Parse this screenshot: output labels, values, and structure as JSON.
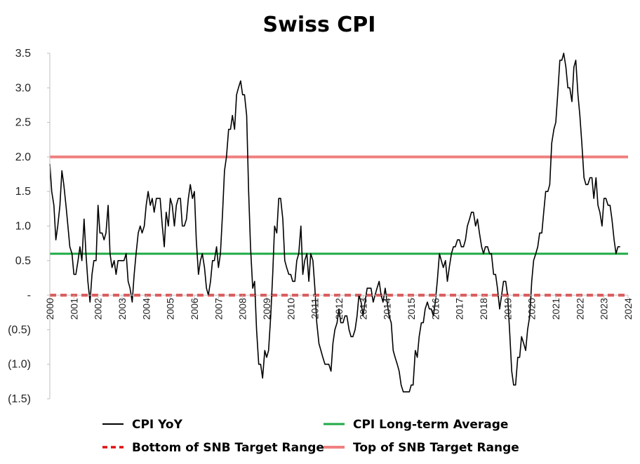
{
  "chart_data": {
    "type": "line",
    "title": "Swiss CPI",
    "xlabel": "",
    "ylabel": "",
    "ylim": [
      -1.5,
      3.5
    ],
    "xlim": [
      2000.0,
      2024.0
    ],
    "y_ticks": [
      {
        "value": 3.5,
        "label": "3.5"
      },
      {
        "value": 3.0,
        "label": "3.0"
      },
      {
        "value": 2.5,
        "label": "2.5"
      },
      {
        "value": 2.0,
        "label": "2.0"
      },
      {
        "value": 1.5,
        "label": "1.5"
      },
      {
        "value": 1.0,
        "label": "1.0"
      },
      {
        "value": 0.5,
        "label": "0.5"
      },
      {
        "value": 0.0,
        "label": "-"
      },
      {
        "value": -0.5,
        "label": "(0.5)"
      },
      {
        "value": -1.0,
        "label": "(1.0)"
      },
      {
        "value": -1.5,
        "label": "(1.5)"
      }
    ],
    "x_ticks": [
      "2000",
      "2001",
      "2002",
      "2003",
      "2004",
      "2005",
      "2006",
      "2007",
      "2008",
      "2009",
      "2010",
      "2011",
      "2012",
      "2013",
      "2014",
      "2015",
      "2016",
      "2017",
      "2018",
      "2019",
      "2020",
      "2021",
      "2022",
      "2023",
      "2024"
    ],
    "grid": false,
    "legend_position": "bottom",
    "series": [
      {
        "name": "CPI YoY",
        "color": "#000000",
        "style": "solid",
        "points": [
          [
            2000.0,
            1.9
          ],
          [
            2000.08,
            1.5
          ],
          [
            2000.17,
            1.3
          ],
          [
            2000.25,
            0.8
          ],
          [
            2000.33,
            1.0
          ],
          [
            2000.42,
            1.3
          ],
          [
            2000.5,
            1.8
          ],
          [
            2000.58,
            1.6
          ],
          [
            2000.67,
            1.3
          ],
          [
            2000.75,
            1.0
          ],
          [
            2000.83,
            0.7
          ],
          [
            2000.92,
            0.6
          ],
          [
            2001.0,
            0.3
          ],
          [
            2001.08,
            0.3
          ],
          [
            2001.17,
            0.5
          ],
          [
            2001.25,
            0.7
          ],
          [
            2001.33,
            0.5
          ],
          [
            2001.42,
            1.1
          ],
          [
            2001.5,
            0.6
          ],
          [
            2001.58,
            0.2
          ],
          [
            2001.67,
            -0.1
          ],
          [
            2001.75,
            0.3
          ],
          [
            2001.83,
            0.5
          ],
          [
            2001.92,
            0.5
          ],
          [
            2002.0,
            1.3
          ],
          [
            2002.08,
            0.9
          ],
          [
            2002.17,
            0.9
          ],
          [
            2002.25,
            0.8
          ],
          [
            2002.33,
            0.9
          ],
          [
            2002.42,
            1.3
          ],
          [
            2002.5,
            0.6
          ],
          [
            2002.58,
            0.4
          ],
          [
            2002.67,
            0.5
          ],
          [
            2002.75,
            0.3
          ],
          [
            2002.83,
            0.5
          ],
          [
            2002.92,
            0.5
          ],
          [
            2003.0,
            0.5
          ],
          [
            2003.08,
            0.5
          ],
          [
            2003.17,
            0.6
          ],
          [
            2003.25,
            0.2
          ],
          [
            2003.33,
            0.1
          ],
          [
            2003.42,
            -0.1
          ],
          [
            2003.5,
            0.3
          ],
          [
            2003.58,
            0.6
          ],
          [
            2003.67,
            0.9
          ],
          [
            2003.75,
            1.0
          ],
          [
            2003.83,
            0.9
          ],
          [
            2003.92,
            1.0
          ],
          [
            2004.0,
            1.3
          ],
          [
            2004.08,
            1.5
          ],
          [
            2004.17,
            1.3
          ],
          [
            2004.25,
            1.4
          ],
          [
            2004.33,
            1.2
          ],
          [
            2004.42,
            1.4
          ],
          [
            2004.5,
            1.4
          ],
          [
            2004.58,
            1.4
          ],
          [
            2004.67,
            1.0
          ],
          [
            2004.75,
            0.7
          ],
          [
            2004.83,
            1.2
          ],
          [
            2004.92,
            1.0
          ],
          [
            2005.0,
            1.4
          ],
          [
            2005.08,
            1.3
          ],
          [
            2005.17,
            1.0
          ],
          [
            2005.25,
            1.3
          ],
          [
            2005.33,
            1.4
          ],
          [
            2005.42,
            1.4
          ],
          [
            2005.5,
            1.0
          ],
          [
            2005.58,
            1.0
          ],
          [
            2005.67,
            1.1
          ],
          [
            2005.75,
            1.4
          ],
          [
            2005.83,
            1.6
          ],
          [
            2005.92,
            1.4
          ],
          [
            2006.0,
            1.5
          ],
          [
            2006.08,
            0.8
          ],
          [
            2006.17,
            0.3
          ],
          [
            2006.25,
            0.5
          ],
          [
            2006.33,
            0.6
          ],
          [
            2006.42,
            0.4
          ],
          [
            2006.5,
            0.1
          ],
          [
            2006.58,
            0.0
          ],
          [
            2006.67,
            0.2
          ],
          [
            2006.75,
            0.5
          ],
          [
            2006.83,
            0.5
          ],
          [
            2006.92,
            0.7
          ],
          [
            2007.0,
            0.4
          ],
          [
            2007.08,
            0.6
          ],
          [
            2007.17,
            1.2
          ],
          [
            2007.25,
            1.8
          ],
          [
            2007.33,
            2.0
          ],
          [
            2007.42,
            2.4
          ],
          [
            2007.5,
            2.4
          ],
          [
            2007.58,
            2.6
          ],
          [
            2007.67,
            2.4
          ],
          [
            2007.75,
            2.9
          ],
          [
            2007.83,
            3.0
          ],
          [
            2007.92,
            3.1
          ],
          [
            2008.0,
            2.9
          ],
          [
            2008.08,
            2.9
          ],
          [
            2008.17,
            2.6
          ],
          [
            2008.25,
            1.5
          ],
          [
            2008.33,
            0.7
          ],
          [
            2008.42,
            0.1
          ],
          [
            2008.5,
            0.2
          ],
          [
            2008.58,
            -0.5
          ],
          [
            2008.67,
            -1.0
          ],
          [
            2008.75,
            -1.0
          ],
          [
            2008.83,
            -1.2
          ],
          [
            2008.92,
            -0.8
          ],
          [
            2009.0,
            -0.9
          ],
          [
            2009.08,
            -0.8
          ],
          [
            2009.17,
            -0.3
          ],
          [
            2009.25,
            0.3
          ],
          [
            2009.33,
            1.0
          ],
          [
            2009.42,
            0.9
          ],
          [
            2009.5,
            1.4
          ],
          [
            2009.58,
            1.4
          ],
          [
            2009.67,
            1.1
          ],
          [
            2009.75,
            0.5
          ],
          [
            2009.83,
            0.4
          ],
          [
            2009.92,
            0.3
          ],
          [
            2010.0,
            0.3
          ],
          [
            2010.08,
            0.2
          ],
          [
            2010.17,
            0.2
          ],
          [
            2010.25,
            0.5
          ],
          [
            2010.33,
            0.6
          ],
          [
            2010.42,
            1.0
          ],
          [
            2010.5,
            0.3
          ],
          [
            2010.58,
            0.5
          ],
          [
            2010.67,
            0.6
          ],
          [
            2010.75,
            0.2
          ],
          [
            2010.83,
            0.6
          ],
          [
            2010.92,
            0.5
          ],
          [
            2011.0,
            0.1
          ],
          [
            2011.08,
            -0.4
          ],
          [
            2011.17,
            -0.7
          ],
          [
            2011.25,
            -0.8
          ],
          [
            2011.33,
            -0.9
          ],
          [
            2011.42,
            -1.0
          ],
          [
            2011.5,
            -1.0
          ],
          [
            2011.58,
            -1.0
          ],
          [
            2011.67,
            -1.1
          ],
          [
            2011.75,
            -0.7
          ],
          [
            2011.83,
            -0.5
          ],
          [
            2011.92,
            -0.4
          ],
          [
            2012.0,
            -0.2
          ],
          [
            2012.08,
            -0.4
          ],
          [
            2012.17,
            -0.4
          ],
          [
            2012.25,
            -0.3
          ],
          [
            2012.33,
            -0.3
          ],
          [
            2012.42,
            -0.5
          ],
          [
            2012.5,
            -0.6
          ],
          [
            2012.58,
            -0.6
          ],
          [
            2012.67,
            -0.5
          ],
          [
            2012.75,
            -0.3
          ],
          [
            2012.83,
            0.0
          ],
          [
            2012.92,
            -0.1
          ],
          [
            2013.0,
            -0.3
          ],
          [
            2013.08,
            -0.1
          ],
          [
            2013.17,
            0.1
          ],
          [
            2013.25,
            0.1
          ],
          [
            2013.33,
            0.1
          ],
          [
            2013.42,
            -0.1
          ],
          [
            2013.5,
            0.0
          ],
          [
            2013.58,
            0.1
          ],
          [
            2013.67,
            0.2
          ],
          [
            2013.75,
            0.0
          ],
          [
            2013.83,
            -0.1
          ],
          [
            2013.92,
            0.1
          ],
          [
            2014.0,
            -0.1
          ],
          [
            2014.08,
            -0.3
          ],
          [
            2014.17,
            -0.4
          ],
          [
            2014.25,
            -0.8
          ],
          [
            2014.33,
            -0.9
          ],
          [
            2014.42,
            -1.0
          ],
          [
            2014.5,
            -1.1
          ],
          [
            2014.58,
            -1.3
          ],
          [
            2014.67,
            -1.4
          ],
          [
            2014.75,
            -1.4
          ],
          [
            2014.83,
            -1.4
          ],
          [
            2014.92,
            -1.4
          ],
          [
            2015.0,
            -1.3
          ],
          [
            2015.08,
            -1.3
          ],
          [
            2015.17,
            -0.8
          ],
          [
            2015.25,
            -0.9
          ],
          [
            2015.33,
            -0.6
          ],
          [
            2015.42,
            -0.4
          ],
          [
            2015.5,
            -0.4
          ],
          [
            2015.58,
            -0.2
          ],
          [
            2015.67,
            -0.1
          ],
          [
            2015.75,
            -0.2
          ],
          [
            2015.83,
            -0.2
          ],
          [
            2015.92,
            -0.3
          ],
          [
            2016.0,
            -0.1
          ],
          [
            2016.08,
            0.2
          ],
          [
            2016.17,
            0.6
          ],
          [
            2016.25,
            0.5
          ],
          [
            2016.33,
            0.4
          ],
          [
            2016.42,
            0.5
          ],
          [
            2016.5,
            0.2
          ],
          [
            2016.58,
            0.4
          ],
          [
            2016.67,
            0.6
          ],
          [
            2016.75,
            0.7
          ],
          [
            2016.83,
            0.7
          ],
          [
            2016.92,
            0.8
          ],
          [
            2017.0,
            0.8
          ],
          [
            2017.08,
            0.7
          ],
          [
            2017.17,
            0.7
          ],
          [
            2017.25,
            0.8
          ],
          [
            2017.33,
            1.0
          ],
          [
            2017.42,
            1.1
          ],
          [
            2017.5,
            1.2
          ],
          [
            2017.58,
            1.2
          ],
          [
            2017.67,
            1.0
          ],
          [
            2017.75,
            1.1
          ],
          [
            2017.83,
            0.9
          ],
          [
            2017.92,
            0.7
          ],
          [
            2018.0,
            0.6
          ],
          [
            2018.08,
            0.7
          ],
          [
            2018.17,
            0.7
          ],
          [
            2018.25,
            0.6
          ],
          [
            2018.33,
            0.6
          ],
          [
            2018.42,
            0.3
          ],
          [
            2018.5,
            0.3
          ],
          [
            2018.58,
            0.1
          ],
          [
            2018.67,
            -0.2
          ],
          [
            2018.75,
            0.0
          ],
          [
            2018.83,
            0.2
          ],
          [
            2018.92,
            0.2
          ],
          [
            2019.0,
            0.0
          ],
          [
            2019.08,
            -0.5
          ],
          [
            2019.17,
            -1.1
          ],
          [
            2019.25,
            -1.3
          ],
          [
            2019.33,
            -1.3
          ],
          [
            2019.42,
            -0.9
          ],
          [
            2019.5,
            -0.9
          ],
          [
            2019.58,
            -0.6
          ],
          [
            2019.67,
            -0.7
          ],
          [
            2019.75,
            -0.8
          ],
          [
            2019.83,
            -0.5
          ],
          [
            2019.92,
            -0.3
          ],
          [
            2020.0,
            0.2
          ],
          [
            2020.08,
            0.5
          ],
          [
            2020.17,
            0.6
          ],
          [
            2020.25,
            0.7
          ],
          [
            2020.33,
            0.9
          ],
          [
            2020.42,
            0.9
          ],
          [
            2020.5,
            1.2
          ],
          [
            2020.58,
            1.5
          ],
          [
            2020.67,
            1.5
          ],
          [
            2020.75,
            1.6
          ],
          [
            2020.83,
            2.2
          ],
          [
            2020.92,
            2.4
          ],
          [
            2021.0,
            2.5
          ],
          [
            2021.08,
            2.9
          ],
          [
            2021.17,
            3.4
          ],
          [
            2021.25,
            3.4
          ],
          [
            2021.33,
            3.5
          ],
          [
            2021.42,
            3.3
          ],
          [
            2021.5,
            3.0
          ],
          [
            2021.58,
            3.0
          ],
          [
            2021.67,
            2.8
          ],
          [
            2021.75,
            3.3
          ],
          [
            2021.83,
            3.4
          ],
          [
            2021.92,
            2.9
          ],
          [
            2022.0,
            2.6
          ],
          [
            2022.08,
            2.2
          ],
          [
            2022.17,
            1.7
          ],
          [
            2022.25,
            1.6
          ],
          [
            2022.33,
            1.6
          ],
          [
            2022.42,
            1.7
          ],
          [
            2022.5,
            1.7
          ],
          [
            2022.58,
            1.4
          ],
          [
            2022.67,
            1.7
          ],
          [
            2022.75,
            1.3
          ],
          [
            2022.83,
            1.2
          ],
          [
            2022.92,
            1.0
          ],
          [
            2023.0,
            1.4
          ],
          [
            2023.08,
            1.4
          ],
          [
            2023.17,
            1.3
          ],
          [
            2023.25,
            1.3
          ],
          [
            2023.33,
            1.1
          ],
          [
            2023.42,
            0.8
          ],
          [
            2023.5,
            0.6
          ],
          [
            2023.58,
            0.7
          ],
          [
            2023.67,
            0.7
          ]
        ]
      },
      {
        "name": "CPI Long-term Average",
        "color": "#1faa45",
        "style": "solid",
        "constant": 0.6
      },
      {
        "name": "Bottom of SNB Target Range",
        "color": "#e01010",
        "style": "dashed",
        "constant": 0.0
      },
      {
        "name": "Top of SNB Target Range",
        "color": "#f08080",
        "style": "solid",
        "constant": 2.0
      }
    ]
  }
}
